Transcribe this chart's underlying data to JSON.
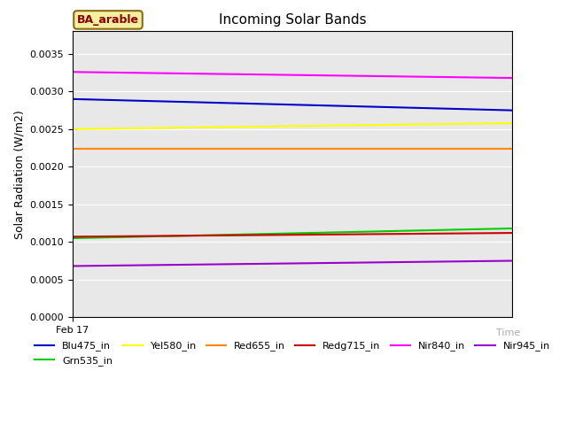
{
  "title": "Incoming Solar Bands",
  "xlabel": "Time",
  "ylabel": "Solar Radiation (W/m2)",
  "xlim": [
    0,
    1
  ],
  "ylim": [
    0.0,
    0.0038
  ],
  "yticks": [
    0.0,
    0.0005,
    0.001,
    0.0015,
    0.002,
    0.0025,
    0.003,
    0.0035
  ],
  "x_tick_label": "Feb 17",
  "bg_color": "#e8e8e8",
  "fig_bg_color": "#ffffff",
  "annotation_text": "BA_arable",
  "annotation_color": "#8b0000",
  "annotation_bg": "#f5f0a0",
  "annotation_edge": "#8b6914",
  "series": [
    {
      "name": "Blu475_in",
      "color": "#0000cc",
      "x": [
        0,
        1
      ],
      "y": [
        0.0029,
        0.00275
      ]
    },
    {
      "name": "Grn535_in",
      "color": "#00cc00",
      "x": [
        0,
        1
      ],
      "y": [
        0.00105,
        0.00118
      ]
    },
    {
      "name": "Yel580_in",
      "color": "#ffff00",
      "x": [
        0,
        1
      ],
      "y": [
        0.0025,
        0.00258
      ]
    },
    {
      "name": "Red655_in",
      "color": "#ff8800",
      "x": [
        0,
        1
      ],
      "y": [
        0.00224,
        0.00224
      ]
    },
    {
      "name": "Redg715_in",
      "color": "#cc0000",
      "x": [
        0,
        1
      ],
      "y": [
        0.00107,
        0.00112
      ]
    },
    {
      "name": "Nir840_in",
      "color": "#ff00ff",
      "x": [
        0,
        1
      ],
      "y": [
        0.00326,
        0.00318
      ]
    },
    {
      "name": "Nir945_in",
      "color": "#9900cc",
      "x": [
        0,
        1
      ],
      "y": [
        0.00068,
        0.00075
      ]
    }
  ]
}
